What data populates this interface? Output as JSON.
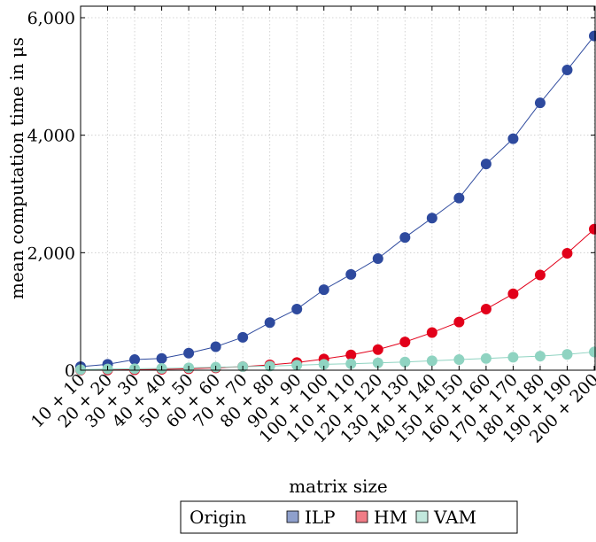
{
  "chart_data": {
    "type": "line",
    "categories": [
      "10 + 10",
      "20 + 20",
      "30 + 30",
      "40 + 40",
      "50 + 50",
      "60 + 60",
      "70 + 70",
      "80 + 80",
      "90 + 90",
      "100 + 100",
      "110 + 110",
      "120 + 120",
      "130 + 130",
      "140 + 140",
      "150 + 150",
      "160 + 160",
      "170 + 170",
      "180 + 180",
      "190 + 190",
      "200 + 200"
    ],
    "series": [
      {
        "name": "ILP",
        "color": "#2e4a9e",
        "legend_color": "#8fa0cc",
        "values": [
          60,
          100,
          180,
          200,
          290,
          400,
          560,
          810,
          1040,
          1370,
          1630,
          1900,
          2260,
          2590,
          2930,
          3510,
          3940,
          4550,
          5110,
          5690
        ]
      },
      {
        "name": "HM",
        "color": "#e2001a",
        "legend_color": "#f07c86",
        "values": [
          2,
          4,
          8,
          15,
          25,
          40,
          60,
          90,
          130,
          190,
          260,
          350,
          480,
          640,
          820,
          1040,
          1300,
          1620,
          1990,
          2400
        ]
      },
      {
        "name": "VAM",
        "color": "#8fd3c1",
        "legend_color": "#c2e8dd",
        "values": [
          10,
          20,
          25,
          30,
          40,
          50,
          60,
          70,
          85,
          100,
          110,
          125,
          140,
          160,
          180,
          200,
          220,
          240,
          270,
          310
        ]
      }
    ],
    "xlabel": "matrix size",
    "ylabel": "mean computation time in μs",
    "ylim": [
      0,
      6000
    ],
    "yticks": [
      0,
      2000,
      4000,
      6000
    ],
    "ytick_labels": [
      "0",
      "2,000",
      "4,000",
      "6,000"
    ],
    "grid": true,
    "legend": {
      "title": "Origin",
      "placement": "bottom-center"
    }
  }
}
